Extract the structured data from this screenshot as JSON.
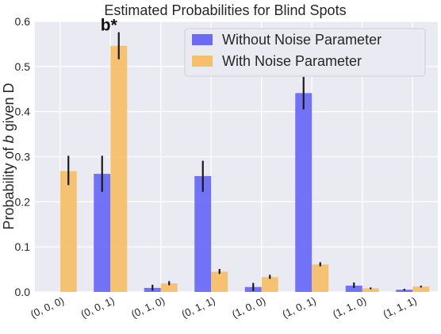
{
  "chart_data": {
    "type": "bar",
    "title": "Estimated Probabilities for Blind Spots",
    "ylabel_parts": [
      "Probability of ",
      "b",
      " given D"
    ],
    "xlabel": "",
    "categories": [
      "(0, 0, 0)",
      "(0, 0, 1)",
      "(0, 1, 0)",
      "(0, 1, 1)",
      "(1, 0, 0)",
      "(1, 0, 1)",
      "(1, 1, 0)",
      "(1, 1, 1)"
    ],
    "ylim": [
      0,
      0.6
    ],
    "yticks": [
      "0.0",
      "0.1",
      "0.2",
      "0.3",
      "0.4",
      "0.5",
      "0.6"
    ],
    "grid": true,
    "legend_position": "top-right",
    "series": [
      {
        "name": "Without Noise Parameter",
        "color": "#6b6bf5",
        "values": [
          0.0,
          0.262,
          0.009,
          0.257,
          0.011,
          0.441,
          0.014,
          0.005
        ],
        "errors": [
          [
            0.0,
            0.0
          ],
          [
            0.222,
            0.302
          ],
          [
            0.003,
            0.016
          ],
          [
            0.222,
            0.291
          ],
          [
            0.002,
            0.02
          ],
          [
            0.405,
            0.477
          ],
          [
            0.009,
            0.021
          ],
          [
            0.003,
            0.007
          ]
        ]
      },
      {
        "name": "With Noise Parameter",
        "color": "#f5bf6b",
        "values": [
          0.268,
          0.546,
          0.019,
          0.045,
          0.033,
          0.061,
          0.008,
          0.012
        ],
        "errors": [
          [
            0.237,
            0.302
          ],
          [
            0.516,
            0.576
          ],
          [
            0.015,
            0.024
          ],
          [
            0.04,
            0.051
          ],
          [
            0.029,
            0.038
          ],
          [
            0.057,
            0.066
          ],
          [
            0.006,
            0.01
          ],
          [
            0.01,
            0.014
          ]
        ]
      }
    ],
    "annotations": [
      {
        "text": "b*",
        "category_index": 1
      }
    ]
  }
}
